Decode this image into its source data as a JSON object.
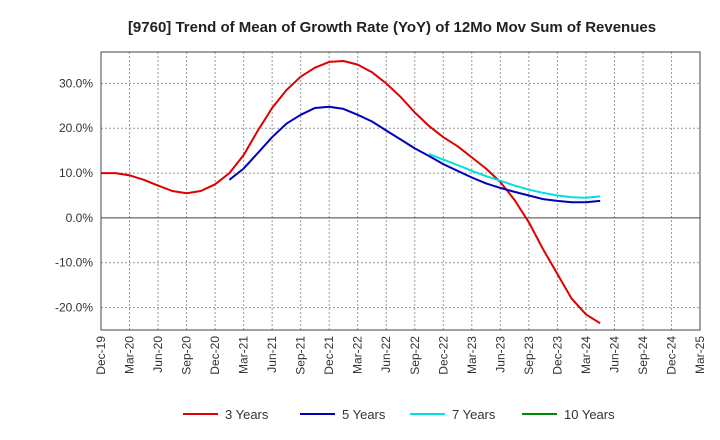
{
  "chart_data": {
    "type": "line",
    "title": "[9760]  Trend of Mean of Growth Rate (YoY) of 12Mo Mov Sum of Revenues",
    "xlabel": "",
    "ylabel": "",
    "ylim": [
      -25,
      37
    ],
    "yticks": [
      -20,
      -10,
      0,
      10,
      20,
      30
    ],
    "ytick_labels": [
      "-20.0%",
      "-10.0%",
      "0.0%",
      "10.0%",
      "20.0%",
      "30.0%"
    ],
    "x_index_range": [
      0,
      21
    ],
    "xtick_labels": [
      "Dec-19",
      "Mar-20",
      "Jun-20",
      "Sep-20",
      "Dec-20",
      "Mar-21",
      "Jun-21",
      "Sep-21",
      "Dec-21",
      "Mar-22",
      "Jun-22",
      "Sep-22",
      "Dec-22",
      "Mar-23",
      "Jun-23",
      "Sep-23",
      "Dec-23",
      "Mar-24",
      "Jun-24",
      "Sep-24",
      "Dec-24",
      "Mar-25"
    ],
    "legend_position": "bottom",
    "grid": true,
    "series": [
      {
        "name": "3 Years",
        "color": "#dd0000",
        "points": [
          [
            0,
            10.0
          ],
          [
            0.5,
            10.0
          ],
          [
            1,
            9.5
          ],
          [
            1.5,
            8.5
          ],
          [
            2,
            7.2
          ],
          [
            2.5,
            6.0
          ],
          [
            3,
            5.5
          ],
          [
            3.5,
            6.0
          ],
          [
            4,
            7.5
          ],
          [
            4.5,
            10.0
          ],
          [
            5,
            14.0
          ],
          [
            5.5,
            19.5
          ],
          [
            6,
            24.5
          ],
          [
            6.5,
            28.5
          ],
          [
            7,
            31.5
          ],
          [
            7.5,
            33.5
          ],
          [
            8,
            34.8
          ],
          [
            8.5,
            35.0
          ],
          [
            9,
            34.2
          ],
          [
            9.5,
            32.5
          ],
          [
            10,
            30.0
          ],
          [
            10.5,
            27.0
          ],
          [
            11,
            23.5
          ],
          [
            11.5,
            20.5
          ],
          [
            12,
            18.0
          ],
          [
            12.5,
            16.0
          ],
          [
            13,
            13.5
          ],
          [
            13.5,
            11.0
          ],
          [
            14,
            8.0
          ],
          [
            14.5,
            4.0
          ],
          [
            15,
            -1.0
          ],
          [
            15.5,
            -7.0
          ],
          [
            16,
            -12.5
          ],
          [
            16.5,
            -18.0
          ],
          [
            17,
            -21.5
          ],
          [
            17.5,
            -23.5
          ]
        ]
      },
      {
        "name": "5 Years",
        "color": "#0000bb",
        "points": [
          [
            4.5,
            8.5
          ],
          [
            5,
            11.0
          ],
          [
            5.5,
            14.5
          ],
          [
            6,
            18.0
          ],
          [
            6.5,
            21.0
          ],
          [
            7,
            23.0
          ],
          [
            7.5,
            24.5
          ],
          [
            8,
            24.8
          ],
          [
            8.5,
            24.3
          ],
          [
            9,
            23.0
          ],
          [
            9.5,
            21.5
          ],
          [
            10,
            19.5
          ],
          [
            10.5,
            17.5
          ],
          [
            11,
            15.5
          ],
          [
            11.5,
            13.8
          ],
          [
            12,
            12.0
          ],
          [
            12.5,
            10.5
          ],
          [
            13,
            9.0
          ],
          [
            13.5,
            7.7
          ],
          [
            14,
            6.7
          ],
          [
            14.5,
            5.8
          ],
          [
            15,
            5.0
          ],
          [
            15.5,
            4.2
          ],
          [
            16,
            3.8
          ],
          [
            16.5,
            3.5
          ],
          [
            17,
            3.5
          ],
          [
            17.5,
            3.8
          ]
        ]
      },
      {
        "name": "7 Years",
        "color": "#00e0e0",
        "points": [
          [
            11.5,
            14.2
          ],
          [
            12,
            13.0
          ],
          [
            12.5,
            11.8
          ],
          [
            13,
            10.5
          ],
          [
            13.5,
            9.3
          ],
          [
            14,
            8.3
          ],
          [
            14.5,
            7.2
          ],
          [
            15,
            6.3
          ],
          [
            15.5,
            5.6
          ],
          [
            16,
            5.0
          ],
          [
            16.5,
            4.6
          ],
          [
            17,
            4.5
          ],
          [
            17.5,
            4.8
          ]
        ]
      },
      {
        "name": "10 Years",
        "color": "#008800",
        "points": []
      }
    ]
  }
}
